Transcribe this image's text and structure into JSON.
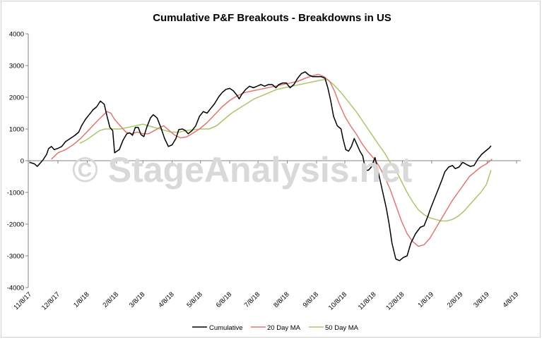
{
  "chart_data": {
    "type": "line",
    "title": "Cumulative P&F Breakouts - Breakdowns in US",
    "watermark": "© StageAnalysis.net",
    "ylim": [
      -4000,
      4000
    ],
    "yticks": [
      -4000,
      -3000,
      -2000,
      -1000,
      0,
      1000,
      2000,
      3000,
      4000
    ],
    "xlim_days": [
      0,
      519
    ],
    "xticks": [
      {
        "label": "11/8/17",
        "day": 0
      },
      {
        "label": "12/8/17",
        "day": 30
      },
      {
        "label": "1/8/18",
        "day": 61
      },
      {
        "label": "2/8/18",
        "day": 92
      },
      {
        "label": "3/8/18",
        "day": 120
      },
      {
        "label": "4/8/18",
        "day": 151
      },
      {
        "label": "5/8/18",
        "day": 181
      },
      {
        "label": "6/8/18",
        "day": 212
      },
      {
        "label": "7/8/18",
        "day": 242
      },
      {
        "label": "8/8/18",
        "day": 273
      },
      {
        "label": "9/8/18",
        "day": 304
      },
      {
        "label": "10/8/18",
        "day": 334
      },
      {
        "label": "11/8/18",
        "day": 365
      },
      {
        "label": "12/8/18",
        "day": 395
      },
      {
        "label": "1/8/19",
        "day": 426
      },
      {
        "label": "2/8/19",
        "day": 457
      },
      {
        "label": "3/8/19",
        "day": 485
      },
      {
        "label": "4/8/19",
        "day": 516
      }
    ],
    "series": [
      {
        "name": "Cumulative",
        "color": "#000000",
        "points": [
          [
            0,
            -50
          ],
          [
            5,
            -100
          ],
          [
            8,
            -180
          ],
          [
            11,
            -80
          ],
          [
            14,
            20
          ],
          [
            18,
            200
          ],
          [
            20,
            380
          ],
          [
            23,
            450
          ],
          [
            26,
            350
          ],
          [
            30,
            390
          ],
          [
            34,
            450
          ],
          [
            38,
            600
          ],
          [
            43,
            700
          ],
          [
            48,
            800
          ],
          [
            52,
            900
          ],
          [
            55,
            1100
          ],
          [
            59,
            1300
          ],
          [
            63,
            1450
          ],
          [
            67,
            1600
          ],
          [
            71,
            1700
          ],
          [
            75,
            1880
          ],
          [
            79,
            1780
          ],
          [
            82,
            1400
          ],
          [
            85,
            1050
          ],
          [
            88,
            950
          ],
          [
            90,
            250
          ],
          [
            95,
            350
          ],
          [
            99,
            650
          ],
          [
            103,
            850
          ],
          [
            106,
            880
          ],
          [
            109,
            800
          ],
          [
            112,
            1050
          ],
          [
            115,
            1050
          ],
          [
            118,
            820
          ],
          [
            121,
            760
          ],
          [
            124,
            1050
          ],
          [
            128,
            1350
          ],
          [
            131,
            1450
          ],
          [
            135,
            1350
          ],
          [
            139,
            1050
          ],
          [
            143,
            700
          ],
          [
            147,
            450
          ],
          [
            151,
            500
          ],
          [
            155,
            700
          ],
          [
            158,
            980
          ],
          [
            162,
            1000
          ],
          [
            165,
            950
          ],
          [
            168,
            850
          ],
          [
            172,
            950
          ],
          [
            176,
            1100
          ],
          [
            180,
            1400
          ],
          [
            184,
            1550
          ],
          [
            188,
            1500
          ],
          [
            192,
            1650
          ],
          [
            196,
            1800
          ],
          [
            200,
            2000
          ],
          [
            204,
            2150
          ],
          [
            208,
            2250
          ],
          [
            212,
            2280
          ],
          [
            216,
            2200
          ],
          [
            220,
            2050
          ],
          [
            222,
            1950
          ],
          [
            225,
            2100
          ],
          [
            229,
            2250
          ],
          [
            233,
            2350
          ],
          [
            237,
            2300
          ],
          [
            241,
            2350
          ],
          [
            245,
            2400
          ],
          [
            249,
            2350
          ],
          [
            253,
            2400
          ],
          [
            257,
            2400
          ],
          [
            261,
            2300
          ],
          [
            264,
            2400
          ],
          [
            268,
            2450
          ],
          [
            272,
            2450
          ],
          [
            276,
            2300
          ],
          [
            280,
            2400
          ],
          [
            284,
            2600
          ],
          [
            288,
            2750
          ],
          [
            292,
            2800
          ],
          [
            296,
            2700
          ],
          [
            300,
            2650
          ],
          [
            305,
            2650
          ],
          [
            309,
            2650
          ],
          [
            313,
            2600
          ],
          [
            316,
            2300
          ],
          [
            319,
            1900
          ],
          [
            322,
            1400
          ],
          [
            326,
            1100
          ],
          [
            330,
            1000
          ],
          [
            332,
            700
          ],
          [
            335,
            350
          ],
          [
            338,
            300
          ],
          [
            341,
            450
          ],
          [
            344,
            700
          ],
          [
            347,
            500
          ],
          [
            350,
            300
          ],
          [
            353,
            150
          ],
          [
            356,
            -300
          ],
          [
            359,
            -300
          ],
          [
            362,
            -200
          ],
          [
            366,
            100
          ],
          [
            369,
            -300
          ],
          [
            372,
            -700
          ],
          [
            375,
            -1100
          ],
          [
            378,
            -1500
          ],
          [
            381,
            -2000
          ],
          [
            384,
            -2600
          ],
          [
            388,
            -3100
          ],
          [
            392,
            -3150
          ],
          [
            396,
            -3050
          ],
          [
            400,
            -3000
          ],
          [
            404,
            -2600
          ],
          [
            409,
            -2300
          ],
          [
            414,
            -2100
          ],
          [
            418,
            -2050
          ],
          [
            422,
            -1750
          ],
          [
            425,
            -1500
          ],
          [
            429,
            -1200
          ],
          [
            433,
            -900
          ],
          [
            437,
            -600
          ],
          [
            440,
            -350
          ],
          [
            444,
            -200
          ],
          [
            448,
            -150
          ],
          [
            451,
            -250
          ],
          [
            455,
            -200
          ],
          [
            459,
            -50
          ],
          [
            463,
            -120
          ],
          [
            467,
            -180
          ],
          [
            471,
            -150
          ],
          [
            475,
            50
          ],
          [
            479,
            200
          ],
          [
            483,
            300
          ],
          [
            487,
            400
          ],
          [
            489,
            470
          ]
        ]
      },
      {
        "name": "20 Day MA",
        "color": "#e0776f",
        "points": [
          [
            23,
            50
          ],
          [
            30,
            250
          ],
          [
            38,
            350
          ],
          [
            46,
            500
          ],
          [
            54,
            700
          ],
          [
            62,
            950
          ],
          [
            70,
            1200
          ],
          [
            76,
            1380
          ],
          [
            82,
            1550
          ],
          [
            86,
            1500
          ],
          [
            90,
            1300
          ],
          [
            96,
            1100
          ],
          [
            102,
            900
          ],
          [
            108,
            850
          ],
          [
            114,
            900
          ],
          [
            120,
            850
          ],
          [
            126,
            850
          ],
          [
            132,
            950
          ],
          [
            138,
            1050
          ],
          [
            142,
            1100
          ],
          [
            148,
            950
          ],
          [
            154,
            800
          ],
          [
            160,
            720
          ],
          [
            166,
            750
          ],
          [
            172,
            850
          ],
          [
            180,
            1000
          ],
          [
            188,
            1200
          ],
          [
            196,
            1450
          ],
          [
            204,
            1700
          ],
          [
            212,
            1900
          ],
          [
            220,
            2050
          ],
          [
            228,
            2150
          ],
          [
            236,
            2200
          ],
          [
            244,
            2250
          ],
          [
            252,
            2300
          ],
          [
            260,
            2350
          ],
          [
            268,
            2400
          ],
          [
            276,
            2450
          ],
          [
            284,
            2500
          ],
          [
            292,
            2600
          ],
          [
            300,
            2680
          ],
          [
            306,
            2720
          ],
          [
            312,
            2650
          ],
          [
            318,
            2500
          ],
          [
            323,
            2200
          ],
          [
            328,
            1800
          ],
          [
            334,
            1400
          ],
          [
            340,
            1100
          ],
          [
            346,
            850
          ],
          [
            352,
            550
          ],
          [
            358,
            300
          ],
          [
            364,
            100
          ],
          [
            370,
            -150
          ],
          [
            376,
            -500
          ],
          [
            382,
            -900
          ],
          [
            388,
            -1400
          ],
          [
            394,
            -1900
          ],
          [
            400,
            -2300
          ],
          [
            406,
            -2550
          ],
          [
            412,
            -2700
          ],
          [
            418,
            -2650
          ],
          [
            424,
            -2450
          ],
          [
            430,
            -2150
          ],
          [
            436,
            -1850
          ],
          [
            442,
            -1550
          ],
          [
            448,
            -1250
          ],
          [
            454,
            -1000
          ],
          [
            460,
            -750
          ],
          [
            466,
            -500
          ],
          [
            472,
            -350
          ],
          [
            478,
            -200
          ],
          [
            484,
            -100
          ],
          [
            490,
            50
          ]
        ]
      },
      {
        "name": "50 Day MA",
        "color": "#a9c768",
        "points": [
          [
            53,
            550
          ],
          [
            60,
            650
          ],
          [
            67,
            800
          ],
          [
            74,
            950
          ],
          [
            80,
            1000
          ],
          [
            88,
            1000
          ],
          [
            96,
            1000
          ],
          [
            104,
            1050
          ],
          [
            112,
            1100
          ],
          [
            120,
            1150
          ],
          [
            126,
            1100
          ],
          [
            132,
            1050
          ],
          [
            138,
            1000
          ],
          [
            144,
            950
          ],
          [
            150,
            900
          ],
          [
            158,
            900
          ],
          [
            166,
            950
          ],
          [
            174,
            980
          ],
          [
            182,
            1000
          ],
          [
            190,
            1000
          ],
          [
            198,
            1100
          ],
          [
            206,
            1300
          ],
          [
            214,
            1500
          ],
          [
            222,
            1650
          ],
          [
            230,
            1800
          ],
          [
            238,
            1950
          ],
          [
            246,
            2050
          ],
          [
            254,
            2150
          ],
          [
            262,
            2250
          ],
          [
            270,
            2300
          ],
          [
            278,
            2350
          ],
          [
            286,
            2400
          ],
          [
            294,
            2450
          ],
          [
            302,
            2500
          ],
          [
            310,
            2550
          ],
          [
            316,
            2550
          ],
          [
            322,
            2400
          ],
          [
            330,
            2150
          ],
          [
            338,
            1850
          ],
          [
            346,
            1550
          ],
          [
            354,
            1200
          ],
          [
            362,
            850
          ],
          [
            370,
            500
          ],
          [
            376,
            250
          ],
          [
            382,
            -50
          ],
          [
            388,
            -300
          ],
          [
            394,
            -650
          ],
          [
            400,
            -1000
          ],
          [
            406,
            -1300
          ],
          [
            412,
            -1550
          ],
          [
            418,
            -1700
          ],
          [
            424,
            -1800
          ],
          [
            430,
            -1850
          ],
          [
            436,
            -1900
          ],
          [
            442,
            -1900
          ],
          [
            448,
            -1850
          ],
          [
            454,
            -1750
          ],
          [
            460,
            -1600
          ],
          [
            466,
            -1400
          ],
          [
            472,
            -1200
          ],
          [
            478,
            -1000
          ],
          [
            484,
            -750
          ],
          [
            489,
            -300
          ]
        ]
      }
    ]
  }
}
